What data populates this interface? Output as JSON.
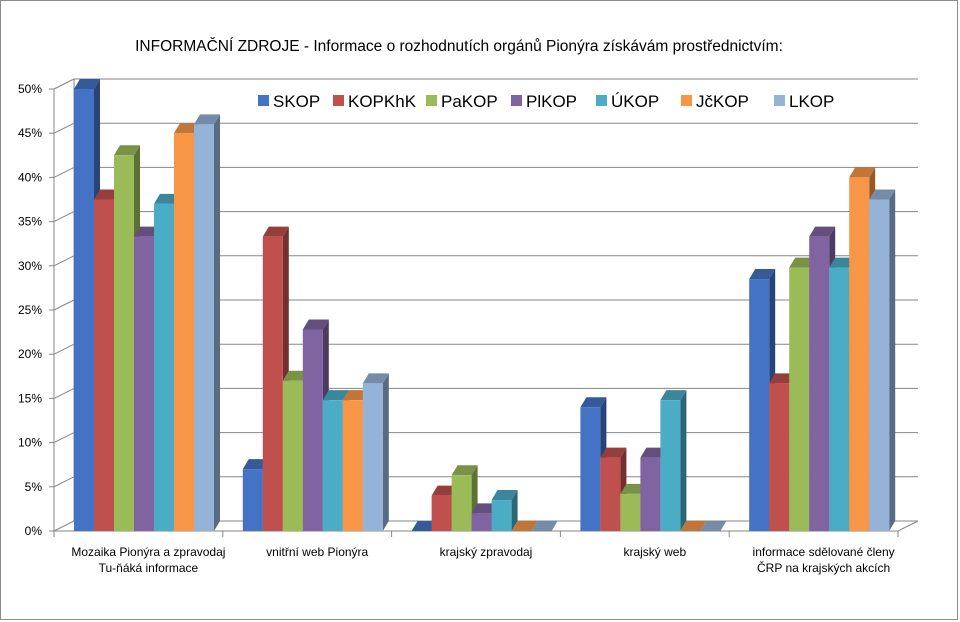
{
  "chart_data": {
    "type": "bar",
    "title": "INFORMAČNÍ ZDROJE - Informace o rozhodnutích orgánů Pionýra získávám prostřednictvím:",
    "categories": [
      [
        "Mozaika Pionýra a zpravodaj",
        "Tu-ňáká informace"
      ],
      [
        "vnitřní web Pionýra"
      ],
      [
        "krajský zpravodaj"
      ],
      [
        "krajský web"
      ],
      [
        "informace sdělované členy",
        "ČRP na krajských akcích"
      ]
    ],
    "series": [
      {
        "name": "SKOP",
        "color": "#4472c4",
        "values": [
          50,
          7,
          0,
          14,
          28.5
        ]
      },
      {
        "name": "KOPKhK",
        "color": "#c0504d",
        "values": [
          37.5,
          33.3,
          4,
          8.3,
          16.7
        ]
      },
      {
        "name": "PaKOP",
        "color": "#9bbb59",
        "values": [
          42.5,
          17,
          6.3,
          4.2,
          29.8
        ]
      },
      {
        "name": "PlKOP",
        "color": "#8064a2",
        "values": [
          33.3,
          22.8,
          2,
          8.3,
          33.3
        ]
      },
      {
        "name": "ÚKOP",
        "color": "#4bacc6",
        "values": [
          37,
          14.8,
          3.5,
          14.8,
          29.8
        ]
      },
      {
        "name": "JčKOP",
        "color": "#f79646",
        "values": [
          45,
          14.8,
          0,
          0,
          40
        ]
      },
      {
        "name": "LKOP",
        "color": "#95b3d7",
        "values": [
          46,
          16.7,
          0,
          0,
          37.5
        ]
      }
    ],
    "ylim": [
      0,
      50
    ],
    "yticks": [
      "0%",
      "5%",
      "10%",
      "15%",
      "20%",
      "25%",
      "30%",
      "35%",
      "40%",
      "45%",
      "50%"
    ],
    "grid": true,
    "legend_position": "top"
  }
}
